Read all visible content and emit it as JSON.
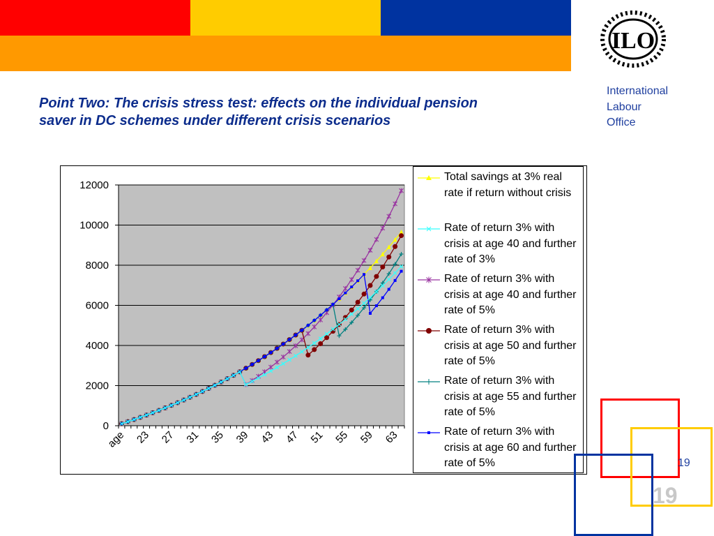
{
  "header": {
    "org_lines": [
      "International",
      "Labour",
      "Office"
    ],
    "logo_text": "ILO"
  },
  "slide": {
    "title": "Point Two: The crisis stress test: effects on the individual pension saver in DC schemes under different crisis scenarios",
    "page_number": "19",
    "page_number_large": "19"
  },
  "colors": {
    "red": "#ff0000",
    "yellow": "#ffcc00",
    "blue": "#0033a0",
    "orange": "#ff9900",
    "title_blue": "#0c2c8c",
    "plot_bg": "#c0c0c0"
  },
  "chart_data": {
    "type": "line",
    "title": "",
    "xlabel": "",
    "ylabel": "",
    "ylim": [
      0,
      12000
    ],
    "yticks": [
      0,
      2000,
      4000,
      6000,
      8000,
      10000,
      12000
    ],
    "x_start_age": 20,
    "x_end_age": 65,
    "x_tick_labels": [
      "age",
      "23",
      "27",
      "31",
      "35",
      "39",
      "43",
      "47",
      "51",
      "55",
      "59",
      "63"
    ],
    "grid": "horizontal",
    "legend_position": "right",
    "series": [
      {
        "name": "Total savings at 3% real rate if return without crisis",
        "color": "#ffff00",
        "marker": "triangle",
        "crisis_age": null,
        "y_at_crisis": null,
        "growth_after": 0.03
      },
      {
        "name": "Rate of return 3% with crisis at age 40 and further rate of 3%",
        "color": "#33ffff",
        "marker": "x",
        "crisis_age": 40,
        "y_at_crisis": 2050,
        "growth_after": 0.03
      },
      {
        "name": "Rate of return 3% with crisis at age 40 and further rate of 5%",
        "color": "#9933a0",
        "marker": "star",
        "crisis_age": 40,
        "y_at_crisis": 2050,
        "growth_after": 0.05
      },
      {
        "name": "Rate of return 3% with crisis at age 50 and further rate of 5%",
        "color": "#800000",
        "marker": "circle",
        "crisis_age": 50,
        "y_at_crisis": 3520,
        "growth_after": 0.05
      },
      {
        "name": "Rate of return 3% with crisis at age 55 and further rate of 5%",
        "color": "#008080",
        "marker": "plus",
        "crisis_age": 55,
        "y_at_crisis": 4480,
        "growth_after": 0.05
      },
      {
        "name": "Rate of return 3% with crisis at age 60 and further rate of 5%",
        "color": "#0000ff",
        "marker": "square",
        "crisis_age": 60,
        "y_at_crisis": 5600,
        "growth_after": 0.05
      }
    ]
  }
}
